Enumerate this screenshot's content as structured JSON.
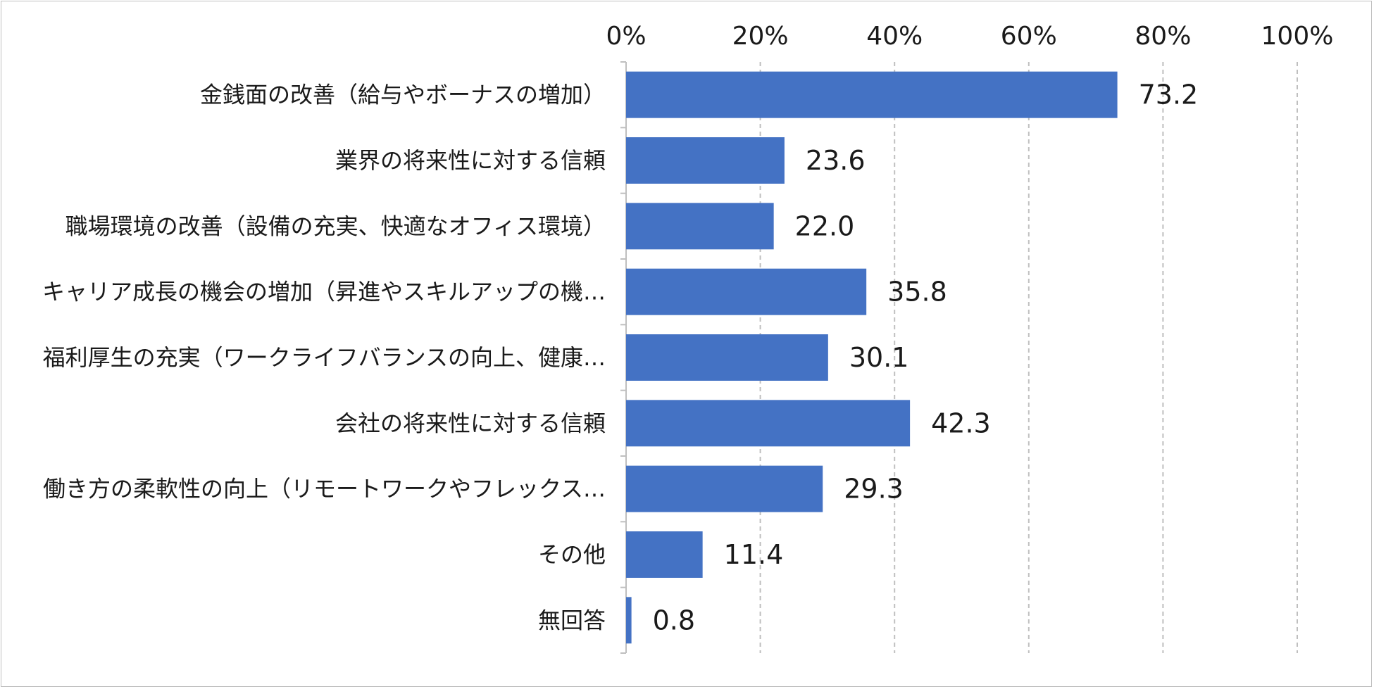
{
  "chart_data": {
    "type": "bar",
    "orientation": "horizontal",
    "categories": [
      "金銭面の改善（給与やボーナスの増加）",
      "業界の将来性に対する信頼",
      "職場環境の改善（設備の充実、快適なオフィス環境）",
      "キャリア成長の機会の増加（昇進やスキルアップの機…",
      "福利厚生の充実（ワークライフバランスの向上、健康…",
      "会社の将来性に対する信頼",
      "働き方の柔軟性の向上（リモートワークやフレックス…",
      "その他",
      "無回答"
    ],
    "values": [
      73.2,
      23.6,
      22.0,
      35.8,
      30.1,
      42.3,
      29.3,
      11.4,
      0.8
    ],
    "value_labels": [
      "73.2",
      "23.6",
      "22.0",
      "35.8",
      "30.1",
      "42.3",
      "29.3",
      "11.4",
      "0.8"
    ],
    "xlim": [
      0,
      100
    ],
    "x_ticks": [
      "0%",
      "20%",
      "40%",
      "60%",
      "80%",
      "100%"
    ],
    "x_tick_values": [
      0,
      20,
      40,
      60,
      80,
      100
    ],
    "x_axis_position": "top",
    "grid": "vertical dashed",
    "legend": "none",
    "title": "",
    "xlabel": "",
    "ylabel": "",
    "bar_color": "#4472c4",
    "grid_color": "#bfbfbf",
    "border_color": "#bfbfbf",
    "text_color": "#1a1a1a"
  }
}
